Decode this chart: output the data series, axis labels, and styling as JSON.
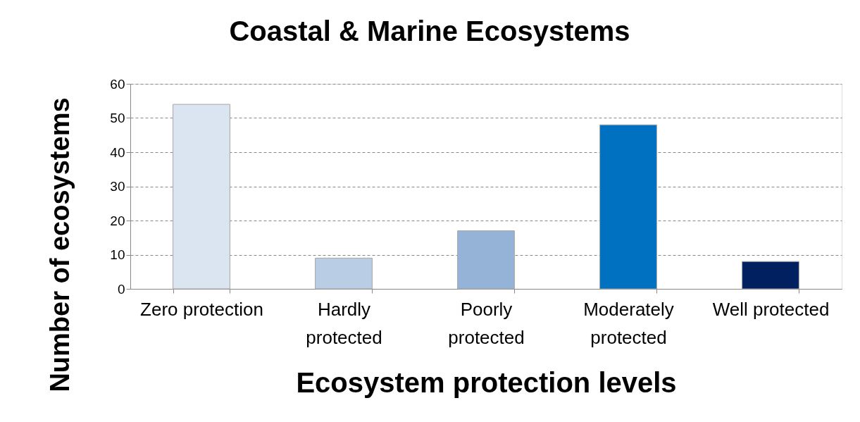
{
  "chart_data": {
    "type": "bar",
    "title": "Coastal & Marine Ecosystems",
    "xlabel": "Ecosystem protection levels",
    "ylabel": "Number of ecosystems",
    "categories": [
      "Zero protection",
      "Hardly\nprotected",
      "Poorly\nprotected",
      "Moderately\nprotected",
      "Well protected"
    ],
    "values": [
      54,
      9,
      17,
      48,
      8
    ],
    "colors": [
      "#dbe5f1",
      "#b9cde5",
      "#95b3d7",
      "#0070c0",
      "#002060"
    ],
    "ylim": [
      0,
      60
    ],
    "yticks": [
      0,
      10,
      20,
      30,
      40,
      50,
      60
    ],
    "grid": "y",
    "legend": false
  }
}
